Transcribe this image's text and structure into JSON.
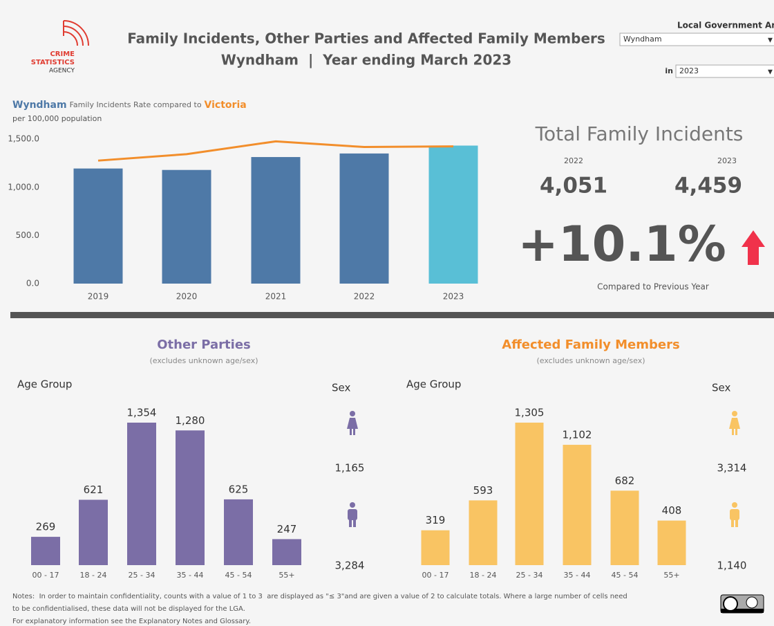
{
  "header": {
    "title": "Family Incidents, Other Parties and Affected Family Members",
    "subtitle": "Wyndham  |  Year ending March 2023",
    "logo": [
      "CRIME",
      "STATISTICS",
      "AGENCY"
    ]
  },
  "filters": {
    "lga_label": "Local Government Area",
    "lga_value": "Wyndham",
    "year_label": "in",
    "year_value": "2023"
  },
  "kpi": {
    "title": "Total Family Incidents",
    "years": [
      "2022",
      "2023"
    ],
    "values": [
      "4,051",
      "4,459"
    ],
    "change": "+10.1%",
    "caption": "Compared to Previous Year"
  },
  "chart_data": [
    {
      "type": "bar",
      "title": "Family Incidents Rate compared to",
      "subtitle": "per 100,000 population",
      "categories": [
        "2019",
        "2020",
        "2021",
        "2022",
        "2023"
      ],
      "series": [
        {
          "name": "Wyndham",
          "color": "#4e79a7",
          "colors": [
            "#4e79a7",
            "#4e79a7",
            "#4e79a7",
            "#4e79a7",
            "#59bfd6"
          ],
          "values": [
            1195,
            1180,
            1314,
            1351,
            1433
          ]
        },
        {
          "name": "Victoria",
          "type": "line",
          "color": "#f28e2b",
          "values": [
            1277,
            1344,
            1477,
            1418,
            1425
          ]
        }
      ],
      "ylim": [
        0,
        1580
      ],
      "yticks": [
        {
          "value": 0,
          "label": "0.0"
        },
        {
          "value": 500,
          "label": "500.0"
        },
        {
          "value": 1000,
          "label": "1,000.0"
        },
        {
          "value": 1500,
          "label": "1,500.0"
        }
      ],
      "grid": false
    },
    {
      "type": "bar",
      "title": "Other Parties",
      "subtitle": "(excludes unknown age/sex)",
      "x_label": "Age Group",
      "color": "#7b6ea6",
      "categories": [
        "00 - 17",
        "18 - 24",
        "25 - 34",
        "35 - 44",
        "45 - 54",
        "55+"
      ],
      "values": [
        269,
        621,
        1354,
        1280,
        625,
        247
      ],
      "value_labels": [
        "269",
        "621",
        "1,354",
        "1,280",
        "625",
        "247"
      ],
      "sex": {
        "label": "Sex",
        "values": [
          1165,
          3284
        ],
        "value_labels": [
          "1,165",
          "3,284"
        ]
      }
    },
    {
      "type": "bar",
      "title": "Affected Family Members",
      "subtitle": "(excludes unknown age/sex)",
      "x_label": "Age Group",
      "color": "#f9c463",
      "title_color": "#f28e2b",
      "categories": [
        "00 - 17",
        "18 - 24",
        "25 - 34",
        "35 - 44",
        "45 - 54",
        "55+"
      ],
      "values": [
        319,
        593,
        1305,
        1102,
        682,
        408
      ],
      "value_labels": [
        "319",
        "593",
        "1,305",
        "1,102",
        "682",
        "408"
      ],
      "sex": {
        "label": "Sex",
        "values": [
          3314,
          1140
        ],
        "value_labels": [
          "3,314",
          "1,140"
        ]
      }
    }
  ],
  "notes": [
    "Notes:  In order to maintain confidentiality, counts with a value of 1 to 3  are displayed as \"≤ 3\"and are given a value of 2 to calculate totals. Where a large number of cells need",
    "to be confidentialised, these data will not be displayed for the LGA.",
    "For explanatory information see the Explanatory Notes and Glossary."
  ]
}
